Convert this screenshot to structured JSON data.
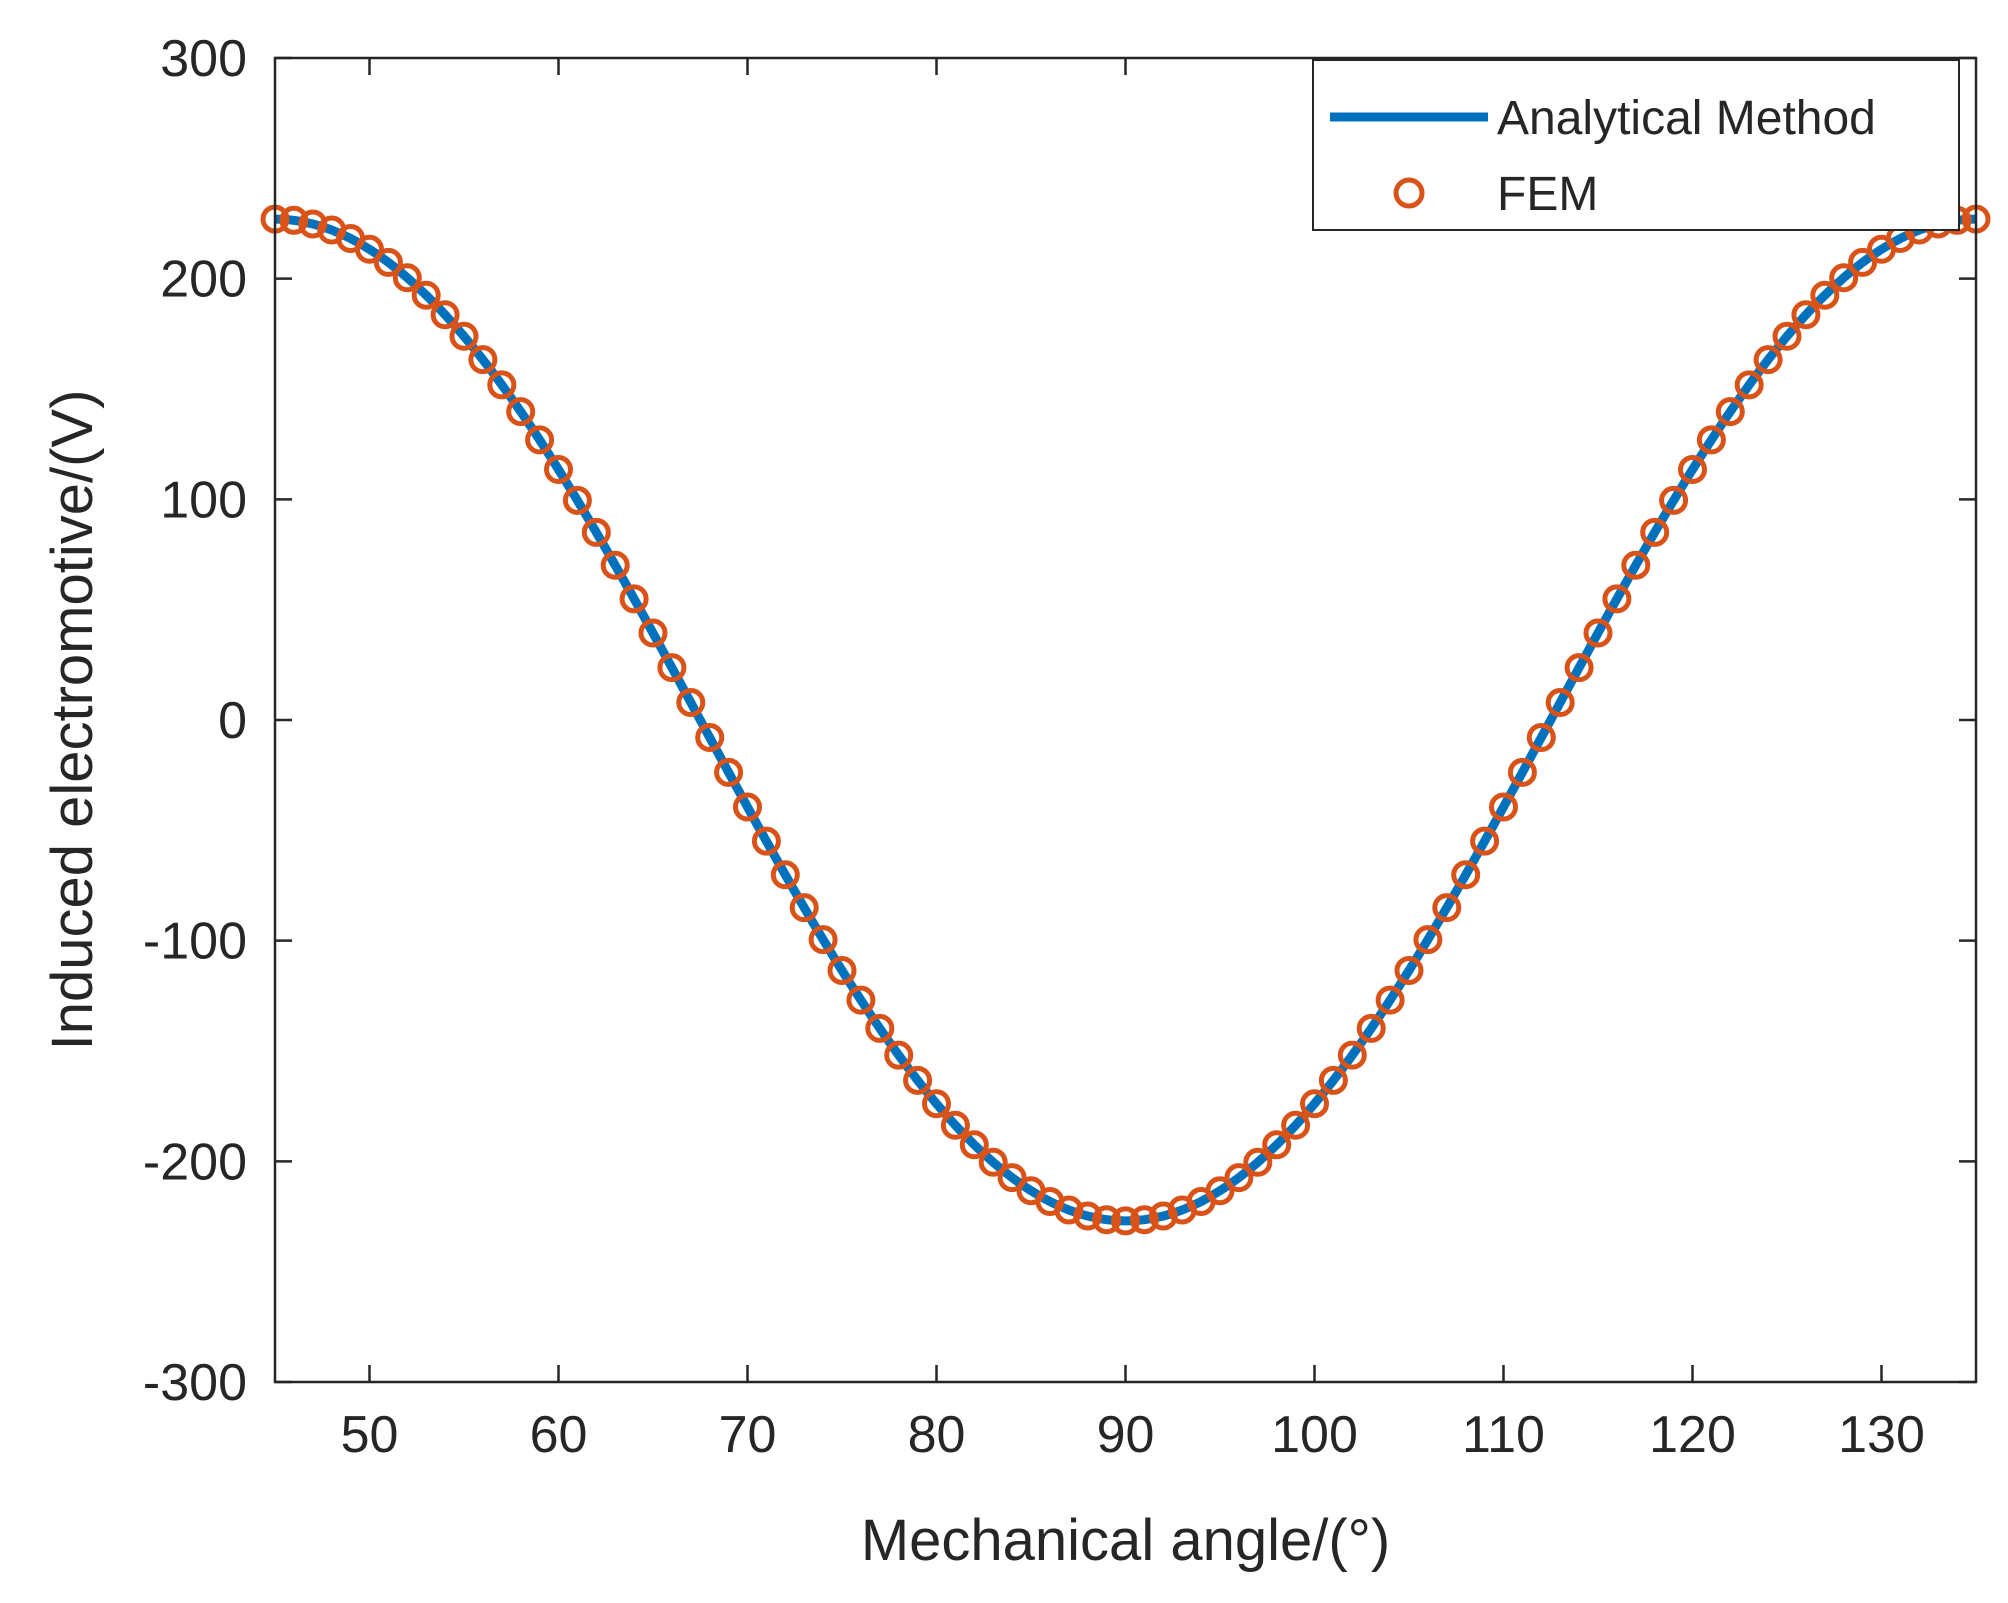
{
  "chart_data": {
    "type": "line",
    "title": "",
    "xlabel": "Mechanical angle/(°)",
    "ylabel": "Induced electromotive/(V)",
    "xlim": [
      45,
      135
    ],
    "ylim": [
      -300,
      300
    ],
    "xticks": [
      50,
      60,
      70,
      80,
      90,
      100,
      110,
      120,
      130
    ],
    "yticks": [
      -300,
      -200,
      -100,
      0,
      100,
      200,
      300
    ],
    "grid": false,
    "legend_position": "top-right",
    "series": [
      {
        "name": "Analytical Method",
        "style": "line",
        "color": "#0072BD",
        "amplitude": 227,
        "period_deg": 90,
        "phase_deg": 0,
        "x_start": 45,
        "x_end": 135,
        "x_step": 0.5
      },
      {
        "name": "FEM",
        "style": "markers",
        "marker": "circle-open",
        "color": "#D95319",
        "amplitude": 227,
        "period_deg": 90,
        "phase_deg": 0,
        "x_start": 45,
        "x_end": 135,
        "x_step": 1
      }
    ]
  }
}
